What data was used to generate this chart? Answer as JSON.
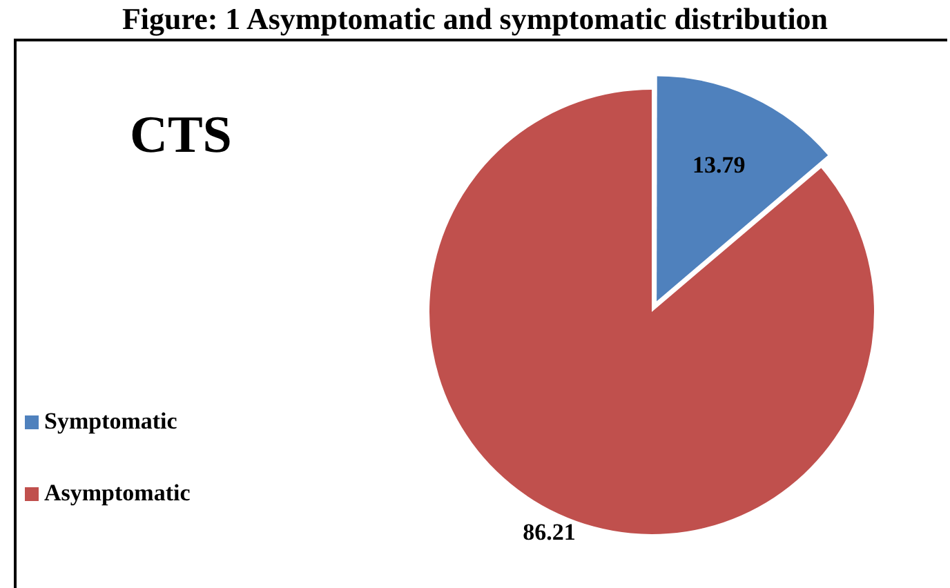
{
  "chart_data": {
    "type": "pie",
    "title": "Figure: 1 Asymptomatic and symptomatic distribution",
    "subtitle": "CTS",
    "categories": [
      "Symptomatic",
      "Asymptomatic"
    ],
    "values": [
      13.79,
      86.21
    ],
    "colors": [
      "#4f81bd",
      "#c0504d"
    ],
    "data_labels": true,
    "legend": "left"
  }
}
